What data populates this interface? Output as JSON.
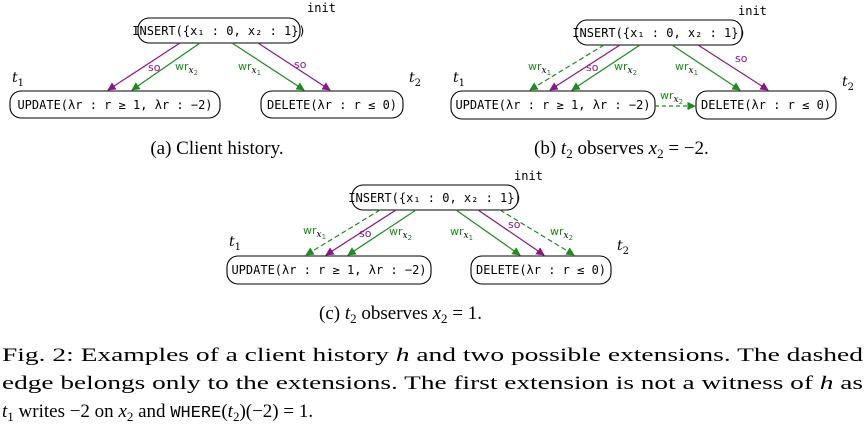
{
  "colors": {
    "so": "#8a168a",
    "wr": "#1f8a1f",
    "text": "#000000"
  },
  "labels": {
    "init": "init",
    "t1": "t",
    "t1_sub": "1",
    "t2": "t",
    "t2_sub": "2",
    "so": "so",
    "wr": "wr",
    "x1": "x",
    "x1_sub": "1",
    "x2": "x",
    "x2_sub": "2"
  },
  "nodes": {
    "insert": "INSERT({x₁ : 0, x₂ : 1})",
    "update": "UPDATE(λr : r ≥ 1,  λr : −2)",
    "delete": "DELETE(λr : r ≤ 0)"
  },
  "subfigures": {
    "a": "(a) Client history.",
    "b_prefix": "(b) ",
    "b_t": "t",
    "b_sub": "2",
    "b_mid": " observes ",
    "b_x": "x",
    "b_xsub": "2",
    "b_eq": " = −2.",
    "c_prefix": "(c) ",
    "c_t": "t",
    "c_sub": "2",
    "c_mid": " observes ",
    "c_x": "x",
    "c_xsub": "2",
    "c_eq": " = 1."
  },
  "figure_caption": {
    "line1_a": "Fig. 2: Examples of a client history ",
    "line1_h": "h",
    "line1_b": " and two possible extensions. The dashed",
    "line2_a": "edge belongs only to the extensions. The first extension is not a witness of ",
    "line2_h": "h",
    "line2_b": " as",
    "line3_t": "t",
    "line3_sub": "1",
    "line3_a": " writes −2 on ",
    "line3_x": "x",
    "line3_xsub": "2",
    "line3_b": " and ",
    "line3_where": "WHERE",
    "line3_c": "(",
    "line3_t2": "t",
    "line3_t2sub": "2",
    "line3_d": ")(−2) = 1."
  }
}
